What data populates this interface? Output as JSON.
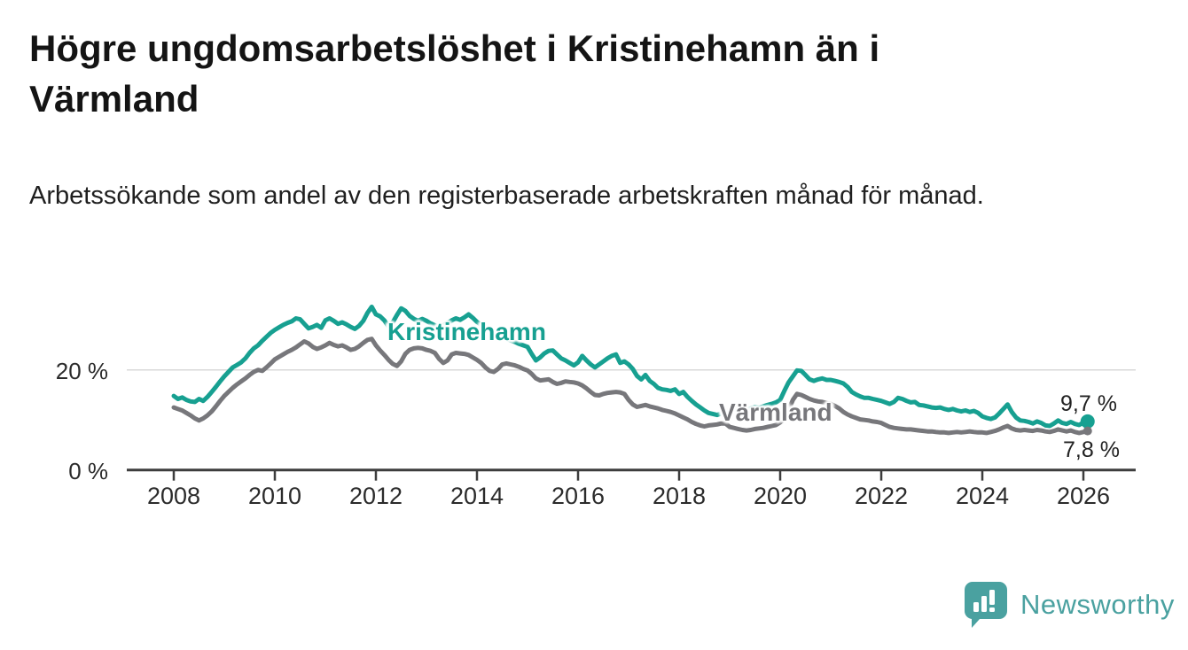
{
  "title": "Högre ungdomsarbetslöshet i Kristinehamn än i Värmland",
  "subtitle": "Arbetssökande som andel av den registerbaserade arbetskraften månad för månad.",
  "chart_data": {
    "type": "line",
    "title": "Högre ungdomsarbetslöshet i Kristinehamn än i Värmland",
    "ylabel": "Arbetssökande som andel av den registerbaserade arbetskraften",
    "unit": "%",
    "x_start_year": 2008,
    "x_start_month": 1,
    "x_step": "month",
    "x_end_year": 2026,
    "x_end_month": 2,
    "xlim": [
      2007.1,
      2027.1
    ],
    "ylim": [
      0,
      34
    ],
    "grid": "single horizontal gridline at 20 %",
    "legend_position": "inline labels on lines",
    "x_tick_years": [
      2008,
      2010,
      2012,
      2014,
      2016,
      2018,
      2020,
      2022,
      2024,
      2026
    ],
    "x_tick_labels": [
      "2008",
      "2010",
      "2012",
      "2014",
      "2016",
      "2018",
      "2020",
      "2022",
      "2024",
      "2026"
    ],
    "y_tick_values": [
      20,
      0
    ],
    "y_tick_labels": [
      "20 %",
      "0 %"
    ],
    "axis_color": "#3d3d3d",
    "gridline_color": "#d9d9d9",
    "series": [
      {
        "name": "Kristinehamn",
        "color": "#17a091",
        "end_label": "9,7 %",
        "end_value": 9.7,
        "values": [
          14.8,
          14.2,
          14.5,
          14.0,
          13.7,
          13.6,
          14.2,
          13.8,
          14.6,
          15.6,
          16.6,
          17.7,
          18.7,
          19.6,
          20.5,
          21.0,
          21.5,
          22.3,
          23.4,
          24.3,
          24.9,
          25.8,
          26.6,
          27.4,
          28.0,
          28.5,
          29.0,
          29.4,
          29.7,
          30.3,
          30.1,
          29.2,
          28.3,
          28.6,
          29.0,
          28.4,
          29.9,
          30.3,
          29.8,
          29.2,
          29.5,
          29.1,
          28.6,
          28.2,
          28.8,
          29.8,
          31.4,
          32.6,
          31.1,
          30.7,
          29.9,
          28.6,
          29.5,
          31.0,
          32.3,
          31.8,
          30.8,
          30.2,
          29.8,
          30.2,
          29.8,
          29.3,
          28.9,
          28.5,
          28.9,
          29.4,
          29.9,
          30.3,
          30.0,
          30.5,
          31.1,
          30.4,
          29.6,
          29.0,
          28.4,
          27.8,
          27.3,
          26.9,
          26.5,
          26.2,
          25.9,
          25.6,
          25.2,
          24.9,
          24.6,
          23.2,
          21.9,
          22.5,
          23.3,
          23.8,
          23.9,
          23.1,
          22.3,
          21.9,
          21.4,
          20.9,
          21.5,
          22.8,
          21.9,
          21.1,
          20.5,
          21.1,
          21.7,
          22.3,
          22.8,
          23.1,
          21.4,
          21.7,
          21.1,
          20.2,
          18.8,
          18.1,
          19.0,
          17.8,
          17.2,
          16.4,
          16.1,
          16.0,
          15.8,
          16.1,
          15.2,
          15.6,
          14.6,
          13.8,
          13.1,
          12.5,
          11.9,
          11.4,
          11.2,
          11.0,
          11.3,
          11.6,
          11.9,
          12.1,
          12.0,
          11.8,
          12.0,
          12.3,
          12.6,
          12.4,
          12.7,
          13.0,
          13.2,
          13.5,
          14.0,
          15.8,
          17.5,
          18.7,
          19.9,
          19.8,
          19.0,
          18.1,
          17.8,
          18.1,
          18.3,
          18.0,
          18.0,
          17.8,
          17.6,
          17.3,
          16.6,
          15.6,
          15.1,
          14.7,
          14.4,
          14.4,
          14.2,
          14.0,
          13.8,
          13.5,
          13.2,
          13.6,
          14.4,
          14.2,
          13.8,
          13.5,
          13.6,
          13.0,
          12.9,
          12.7,
          12.5,
          12.4,
          12.5,
          12.2,
          12.0,
          12.2,
          11.9,
          11.7,
          11.9,
          11.6,
          11.8,
          11.4,
          10.7,
          10.4,
          10.2,
          10.5,
          11.3,
          12.2,
          13.1,
          11.6,
          10.5,
          9.9,
          9.8,
          9.6,
          9.3,
          9.7,
          9.4,
          8.9,
          8.8,
          9.3,
          9.9,
          9.4,
          9.2,
          9.6,
          9.2,
          9.0,
          9.5,
          9.7
        ]
      },
      {
        "name": "Värmland",
        "color": "#77777b",
        "end_label": "7,8 %",
        "end_value": 7.8,
        "values": [
          12.5,
          12.2,
          11.9,
          11.4,
          10.9,
          10.3,
          9.9,
          10.3,
          10.9,
          11.7,
          12.7,
          13.8,
          14.8,
          15.6,
          16.4,
          17.1,
          17.7,
          18.3,
          19.0,
          19.6,
          20.0,
          19.8,
          20.5,
          21.3,
          22.1,
          22.6,
          23.1,
          23.6,
          24.0,
          24.5,
          25.1,
          25.7,
          25.3,
          24.6,
          24.2,
          24.5,
          24.9,
          25.4,
          25.0,
          24.7,
          24.9,
          24.5,
          24.0,
          24.2,
          24.7,
          25.4,
          26.0,
          26.2,
          24.9,
          23.9,
          23.0,
          22.0,
          21.2,
          20.8,
          21.7,
          23.2,
          24.0,
          24.3,
          24.4,
          24.3,
          24.0,
          23.8,
          23.4,
          22.2,
          21.4,
          21.9,
          23.1,
          23.4,
          23.3,
          23.2,
          23.0,
          22.5,
          22.0,
          21.4,
          20.5,
          19.8,
          19.6,
          20.2,
          21.1,
          21.3,
          21.1,
          20.9,
          20.6,
          20.2,
          19.9,
          19.2,
          18.3,
          17.9,
          18.0,
          18.1,
          17.6,
          17.2,
          17.4,
          17.7,
          17.6,
          17.5,
          17.3,
          16.9,
          16.3,
          15.6,
          15.0,
          14.9,
          15.2,
          15.4,
          15.5,
          15.6,
          15.5,
          15.2,
          14.0,
          13.1,
          12.6,
          12.8,
          13.0,
          12.7,
          12.5,
          12.3,
          12.0,
          11.8,
          11.6,
          11.3,
          10.9,
          10.5,
          10.1,
          9.6,
          9.2,
          8.9,
          8.7,
          8.9,
          9.0,
          9.1,
          9.3,
          9.3,
          8.6,
          8.4,
          8.2,
          8.0,
          7.9,
          8.0,
          8.2,
          8.3,
          8.4,
          8.6,
          8.8,
          9.0,
          9.5,
          10.2,
          12.0,
          14.0,
          15.2,
          15.0,
          14.6,
          14.2,
          13.9,
          13.7,
          13.6,
          13.4,
          13.2,
          12.8,
          12.3,
          11.6,
          11.1,
          10.7,
          10.4,
          10.1,
          10.0,
          9.9,
          9.7,
          9.6,
          9.4,
          9.0,
          8.6,
          8.4,
          8.3,
          8.2,
          8.1,
          8.1,
          8.0,
          7.9,
          7.8,
          7.7,
          7.7,
          7.6,
          7.5,
          7.5,
          7.4,
          7.5,
          7.6,
          7.5,
          7.6,
          7.7,
          7.6,
          7.5,
          7.5,
          7.4,
          7.6,
          7.8,
          8.1,
          8.5,
          8.8,
          8.3,
          8.0,
          7.9,
          8.0,
          7.9,
          7.8,
          8.0,
          7.9,
          7.7,
          7.6,
          7.8,
          8.1,
          7.9,
          7.7,
          7.9,
          7.6,
          7.4,
          7.6,
          7.8
        ]
      }
    ]
  },
  "footer": {
    "brand": "Newsworthy",
    "brand_color": "#4aa1a0",
    "logo": "bar-chart-speech-bubble-icon"
  }
}
